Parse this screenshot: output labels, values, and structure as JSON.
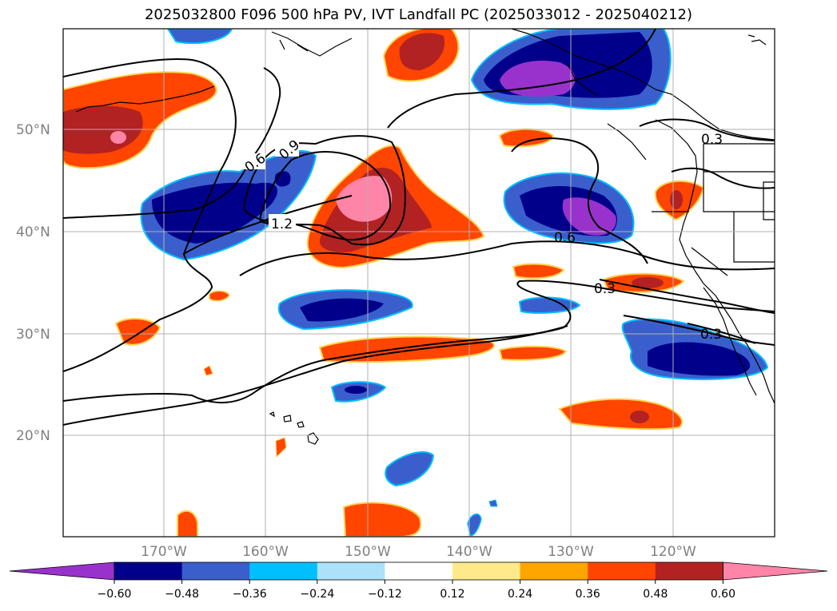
{
  "title": "2025032800 F096 500 hPa PV, IVT Landfall PC (2025033012 - 2025040212)",
  "map": {
    "lat_labels": [
      "50°N",
      "40°N",
      "30°N",
      "20°N"
    ],
    "lon_labels": [
      "170°W",
      "160°W",
      "150°W",
      "140°W",
      "130°W",
      "120°W"
    ],
    "contour_labels": [
      "0.6",
      "0.9",
      "1.2",
      "0.6",
      "0.3",
      "0.3",
      "0.3"
    ],
    "label_color": "#808080"
  },
  "colorbar": {
    "ticks": [
      "−0.60",
      "−0.48",
      "−0.36",
      "−0.24",
      "−0.12",
      "0.12",
      "0.24",
      "0.36",
      "0.48",
      "0.60"
    ],
    "colors": [
      "#9932CC",
      "#00008B",
      "#3A5FCD",
      "#00BFFF",
      "#ADE0F9",
      "#FFFFFF",
      "#FFE98A",
      "#FFA500",
      "#FF4500",
      "#B22222",
      "#FF85A8"
    ]
  }
}
